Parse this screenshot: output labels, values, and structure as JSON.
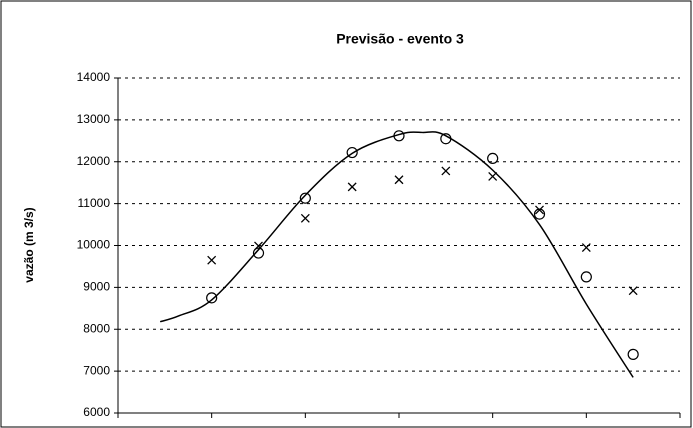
{
  "chart_data": {
    "type": "scatter",
    "title": "Previsão - evento 3",
    "y_label": "vazão (m 3/s)",
    "xlim": [
      0,
      12
    ],
    "xticks": [
      0,
      2,
      4,
      6,
      8,
      10,
      12
    ],
    "ylim": [
      6000,
      14000
    ],
    "yticks": [
      6000,
      7000,
      8000,
      9000,
      10000,
      11000,
      12000,
      13000,
      14000
    ],
    "grid": true,
    "series": [
      {
        "marker": "circle",
        "color": "#000000",
        "x": [
          2,
          3,
          4,
          5,
          6,
          7,
          8,
          9,
          10,
          11
        ],
        "values": [
          8750,
          9820,
          11130,
          12220,
          12620,
          12550,
          12080,
          10750,
          9250,
          7400
        ]
      },
      {
        "marker": "cross",
        "color": "#000000",
        "x": [
          2,
          3,
          4,
          5,
          6,
          7,
          8,
          9,
          10,
          11
        ],
        "values": [
          9650,
          9990,
          10650,
          11400,
          11570,
          11780,
          11650,
          10850,
          9950,
          8920
        ]
      },
      {
        "marker": "line",
        "color": "#000000",
        "x": [
          0.9,
          1.3,
          2,
          3,
          4,
          5,
          6,
          6.5,
          7,
          8,
          9,
          10,
          11
        ],
        "values": [
          8180,
          8320,
          8700,
          9900,
          11200,
          12200,
          12650,
          12700,
          12620,
          11800,
          10500,
          8600,
          6850
        ]
      }
    ]
  }
}
